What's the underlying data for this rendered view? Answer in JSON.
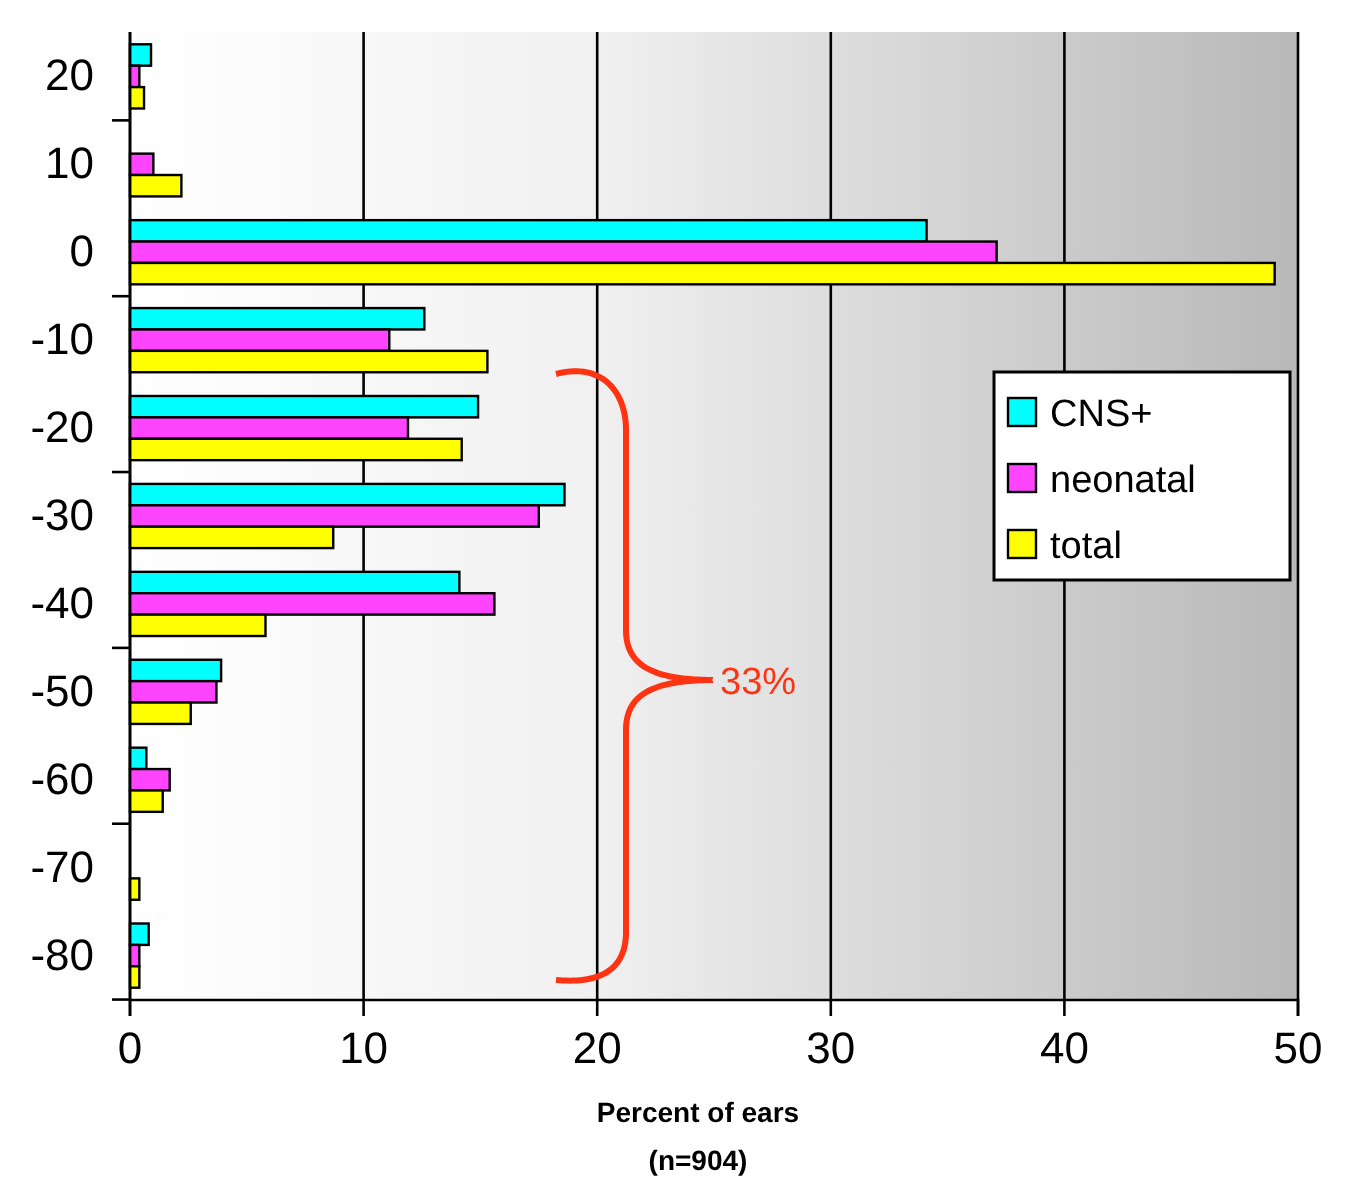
{
  "chart_data": {
    "type": "bar",
    "orientation": "horizontal",
    "categories": [
      "20",
      "10",
      "0",
      "-10",
      "-20",
      "-30",
      "-40",
      "-50",
      "-60",
      "-70",
      "-80"
    ],
    "series": [
      {
        "name": "CNS+",
        "color": "#00ffff",
        "values": [
          0.9,
          0,
          34.1,
          12.6,
          14.9,
          18.6,
          14.1,
          3.9,
          0.7,
          0,
          0.8
        ]
      },
      {
        "name": "neonatal",
        "color": "#ff44ff",
        "values": [
          0.4,
          1.0,
          37.1,
          11.1,
          11.9,
          17.5,
          15.6,
          3.7,
          1.7,
          0,
          0.4
        ]
      },
      {
        "name": "total",
        "color": "#ffff00",
        "values": [
          0.6,
          2.2,
          49.0,
          15.3,
          14.2,
          8.7,
          5.8,
          2.6,
          1.4,
          0.4,
          0.4
        ]
      }
    ],
    "xlim": [
      0,
      50
    ],
    "xticks": [
      0,
      10,
      20,
      30,
      40,
      50
    ],
    "xlabel": "Percent of ears\n(n=904)",
    "grid": "x",
    "legend": "right",
    "annotations": [
      "33%"
    ]
  }
}
